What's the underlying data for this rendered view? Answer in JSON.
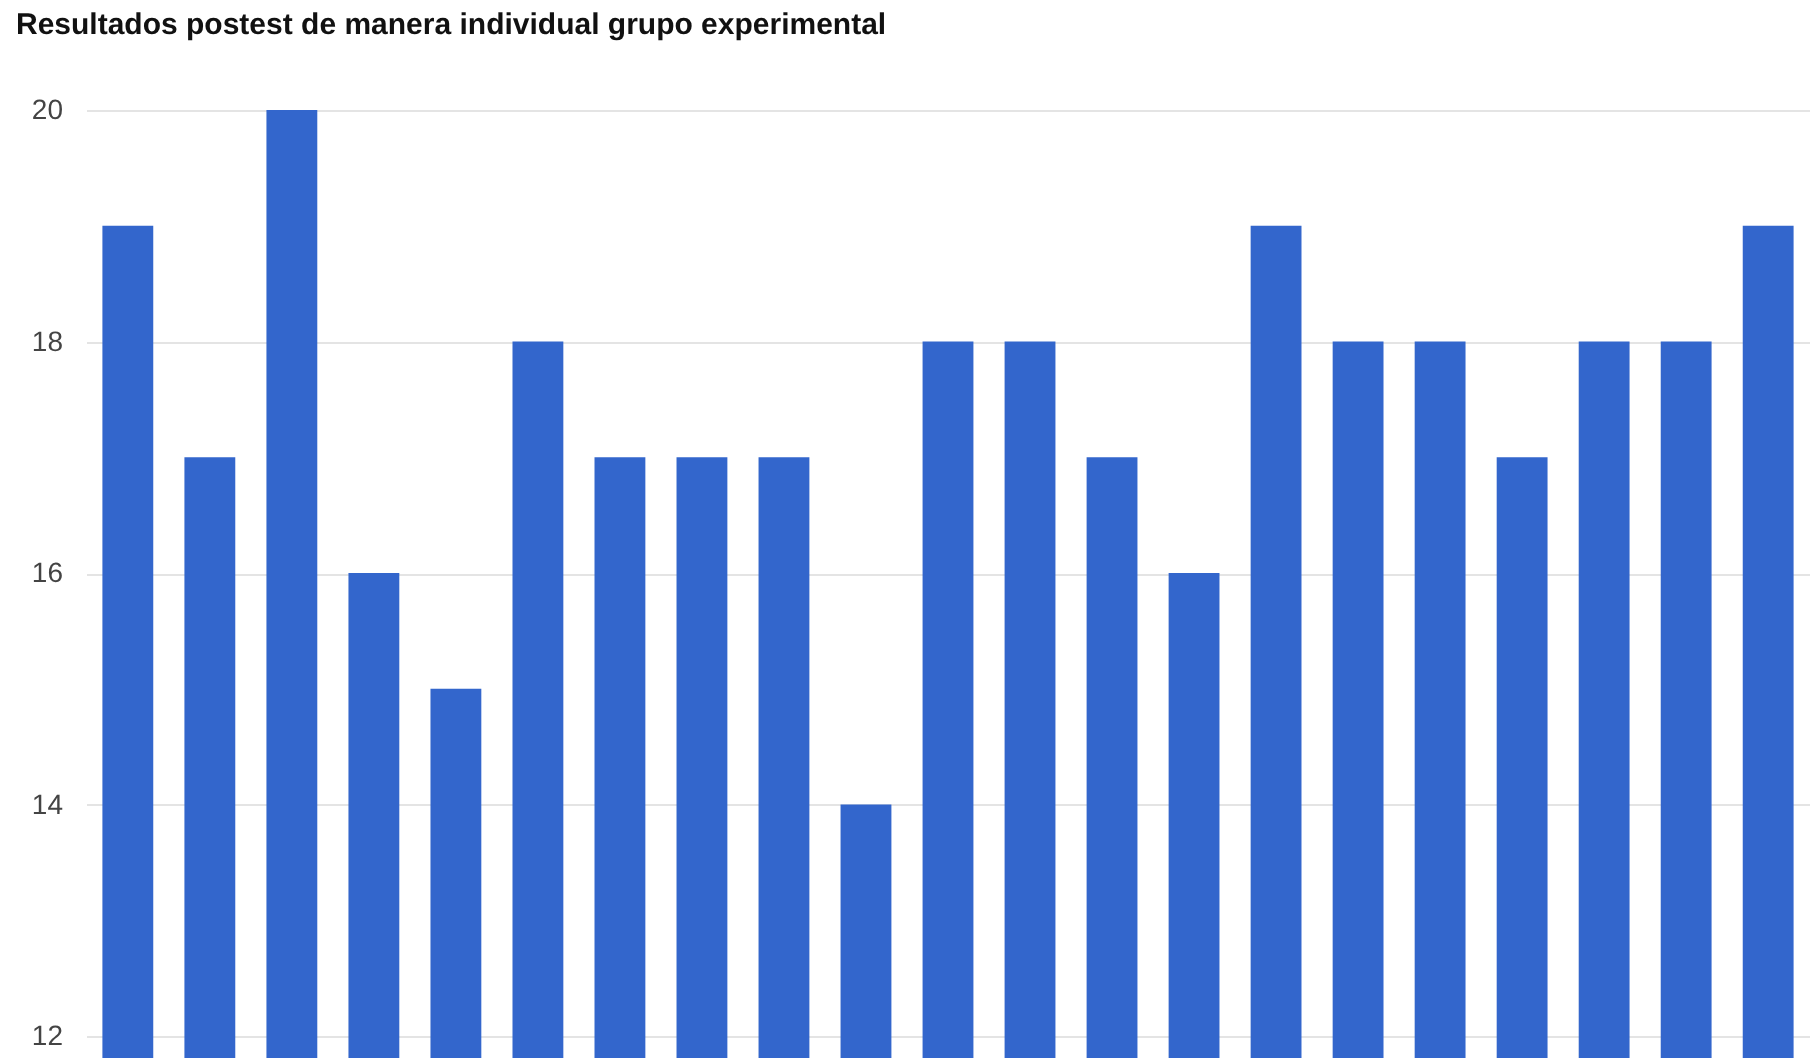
{
  "chart_data": {
    "type": "bar",
    "title": "Resultados postest de manera individual grupo experimental",
    "categories": [
      null,
      null,
      null,
      null,
      null,
      null,
      null,
      null,
      null,
      null,
      null,
      null,
      null,
      null,
      null,
      null,
      null,
      null,
      null,
      null,
      null
    ],
    "values": [
      19,
      17,
      20,
      16,
      15,
      18,
      17,
      17,
      17,
      14,
      18,
      18,
      17,
      16,
      19,
      18,
      18,
      17,
      18,
      18,
      19
    ],
    "color": "#3366cc",
    "ylim": [
      12,
      20
    ],
    "yticks": [
      12,
      14,
      16,
      18,
      20
    ],
    "grid": "y",
    "tick_labels": "y"
  }
}
